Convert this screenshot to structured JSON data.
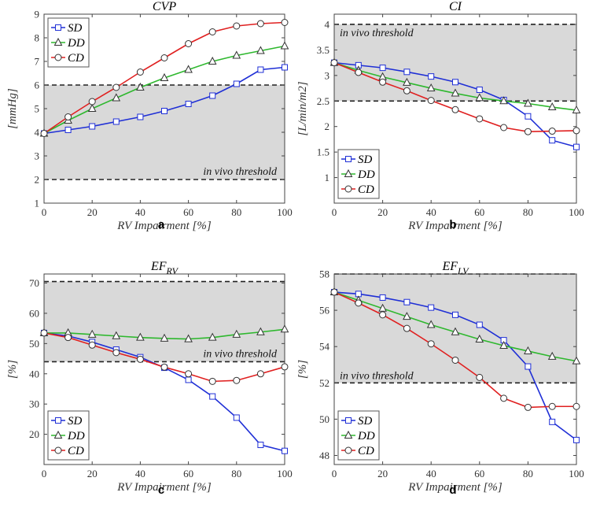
{
  "colors": {
    "SD": "#1f2fd6",
    "DD": "#2eb82e",
    "CD": "#e02020",
    "band": "#d9d9d9"
  },
  "chart_data": [
    {
      "type": "line",
      "panel_label": "a",
      "title": "CVP",
      "title_sub": "",
      "xlabel": "RV Impairment [%]",
      "ylabel": "[mmHg]",
      "x": [
        0,
        10,
        20,
        30,
        40,
        50,
        60,
        70,
        80,
        90,
        100
      ],
      "xticks": [
        0,
        20,
        40,
        60,
        80,
        100
      ],
      "xlim": [
        0,
        100
      ],
      "ylim": [
        1,
        9
      ],
      "yticks": [
        1,
        2,
        3,
        4,
        5,
        6,
        7,
        8,
        9
      ],
      "ytick_labels": [
        "1",
        "2",
        "3",
        "4",
        "5",
        "6",
        "7",
        "8",
        "9"
      ],
      "band": [
        2,
        6
      ],
      "threshold_label": "in vivo threshold",
      "threshold_label_pos": "bottom-right",
      "legend_loc": "top-left",
      "series": [
        {
          "name": "SD",
          "marker": "square",
          "values": [
            3.95,
            4.1,
            4.25,
            4.45,
            4.65,
            4.9,
            5.2,
            5.55,
            6.05,
            6.65,
            6.75
          ]
        },
        {
          "name": "DD",
          "marker": "triangle",
          "values": [
            3.95,
            4.5,
            5.0,
            5.45,
            5.9,
            6.3,
            6.65,
            7.0,
            7.25,
            7.45,
            7.65
          ]
        },
        {
          "name": "CD",
          "marker": "circle",
          "values": [
            3.95,
            4.65,
            5.3,
            5.9,
            6.55,
            7.15,
            7.75,
            8.25,
            8.5,
            8.6,
            8.65
          ]
        }
      ]
    },
    {
      "type": "line",
      "panel_label": "b",
      "title": "CI",
      "title_sub": "",
      "xlabel": "RV Impairment [%]",
      "ylabel": "[L/min/m2]",
      "x": [
        0,
        10,
        20,
        30,
        40,
        50,
        60,
        70,
        80,
        90,
        100
      ],
      "xticks": [
        0,
        20,
        40,
        60,
        80,
        100
      ],
      "xlim": [
        0,
        100
      ],
      "ylim": [
        0.5,
        4.2
      ],
      "yticks": [
        1,
        1.5,
        2,
        2.5,
        3,
        3.5,
        4
      ],
      "ytick_labels": [
        "1",
        "1.5",
        "2",
        "2.5",
        "3",
        "3.5",
        "4"
      ],
      "band": [
        2.5,
        4.0
      ],
      "threshold_label": "in vivo threshold",
      "threshold_label_pos": "top-left",
      "legend_loc": "bottom-left",
      "series": [
        {
          "name": "SD",
          "marker": "square",
          "values": [
            3.25,
            3.2,
            3.15,
            3.07,
            2.98,
            2.87,
            2.72,
            2.52,
            2.2,
            1.73,
            1.6
          ]
        },
        {
          "name": "DD",
          "marker": "triangle",
          "values": [
            3.25,
            3.1,
            2.97,
            2.86,
            2.75,
            2.65,
            2.56,
            2.5,
            2.45,
            2.38,
            2.32
          ]
        },
        {
          "name": "CD",
          "marker": "circle",
          "values": [
            3.25,
            3.06,
            2.87,
            2.7,
            2.51,
            2.33,
            2.15,
            1.98,
            1.9,
            1.91,
            1.92
          ]
        }
      ]
    },
    {
      "type": "line",
      "panel_label": "c",
      "title": "EF",
      "title_sub": "RV",
      "xlabel": "RV Impairment [%]",
      "ylabel": "[%]",
      "x": [
        0,
        10,
        20,
        30,
        40,
        50,
        60,
        70,
        80,
        90,
        100
      ],
      "xticks": [
        0,
        20,
        40,
        60,
        80,
        100
      ],
      "xlim": [
        0,
        100
      ],
      "ylim": [
        10,
        73
      ],
      "yticks": [
        20,
        30,
        40,
        50,
        60,
        70
      ],
      "ytick_labels": [
        "20",
        "30",
        "40",
        "50",
        "60",
        "70"
      ],
      "band": [
        44,
        70.5
      ],
      "threshold_label": "in vivo threshold",
      "threshold_label_pos": "bottom-right",
      "legend_loc": "bottom-left",
      "series": [
        {
          "name": "SD",
          "marker": "square",
          "values": [
            53.5,
            52.5,
            50.5,
            48.0,
            45.5,
            42.0,
            38.0,
            32.5,
            25.5,
            16.5,
            14.5
          ]
        },
        {
          "name": "DD",
          "marker": "triangle",
          "values": [
            53.5,
            53.5,
            53.0,
            52.5,
            52.0,
            51.7,
            51.5,
            52.0,
            53.0,
            53.8,
            54.7
          ]
        },
        {
          "name": "CD",
          "marker": "circle",
          "values": [
            53.5,
            52.0,
            49.5,
            47.0,
            44.8,
            42.2,
            40.0,
            37.5,
            37.8,
            40.0,
            42.3
          ]
        }
      ]
    },
    {
      "type": "line",
      "panel_label": "d",
      "title": "EF",
      "title_sub": "LV",
      "xlabel": "RV Impairment [%]",
      "ylabel": "[%]",
      "x": [
        0,
        10,
        20,
        30,
        40,
        50,
        60,
        70,
        80,
        90,
        100
      ],
      "xticks": [
        0,
        20,
        40,
        60,
        80,
        100
      ],
      "xlim": [
        0,
        100
      ],
      "ylim": [
        47.5,
        58
      ],
      "yticks": [
        48,
        50,
        52,
        54,
        56,
        58
      ],
      "ytick_labels": [
        "48",
        "50",
        "52",
        "54",
        "56",
        "58"
      ],
      "band": [
        52,
        58
      ],
      "threshold_label": "in vivo threshold",
      "threshold_label_pos": "bottom-left",
      "legend_loc": "bottom-left",
      "series": [
        {
          "name": "SD",
          "marker": "square",
          "values": [
            57.0,
            56.9,
            56.7,
            56.45,
            56.15,
            55.75,
            55.2,
            54.35,
            52.9,
            49.85,
            48.85
          ]
        },
        {
          "name": "DD",
          "marker": "triangle",
          "values": [
            57.0,
            56.55,
            56.1,
            55.65,
            55.2,
            54.8,
            54.4,
            54.05,
            53.75,
            53.45,
            53.2
          ]
        },
        {
          "name": "CD",
          "marker": "circle",
          "values": [
            57.0,
            56.4,
            55.75,
            55.0,
            54.15,
            53.25,
            52.3,
            51.15,
            50.65,
            50.7,
            50.7
          ]
        }
      ]
    }
  ]
}
